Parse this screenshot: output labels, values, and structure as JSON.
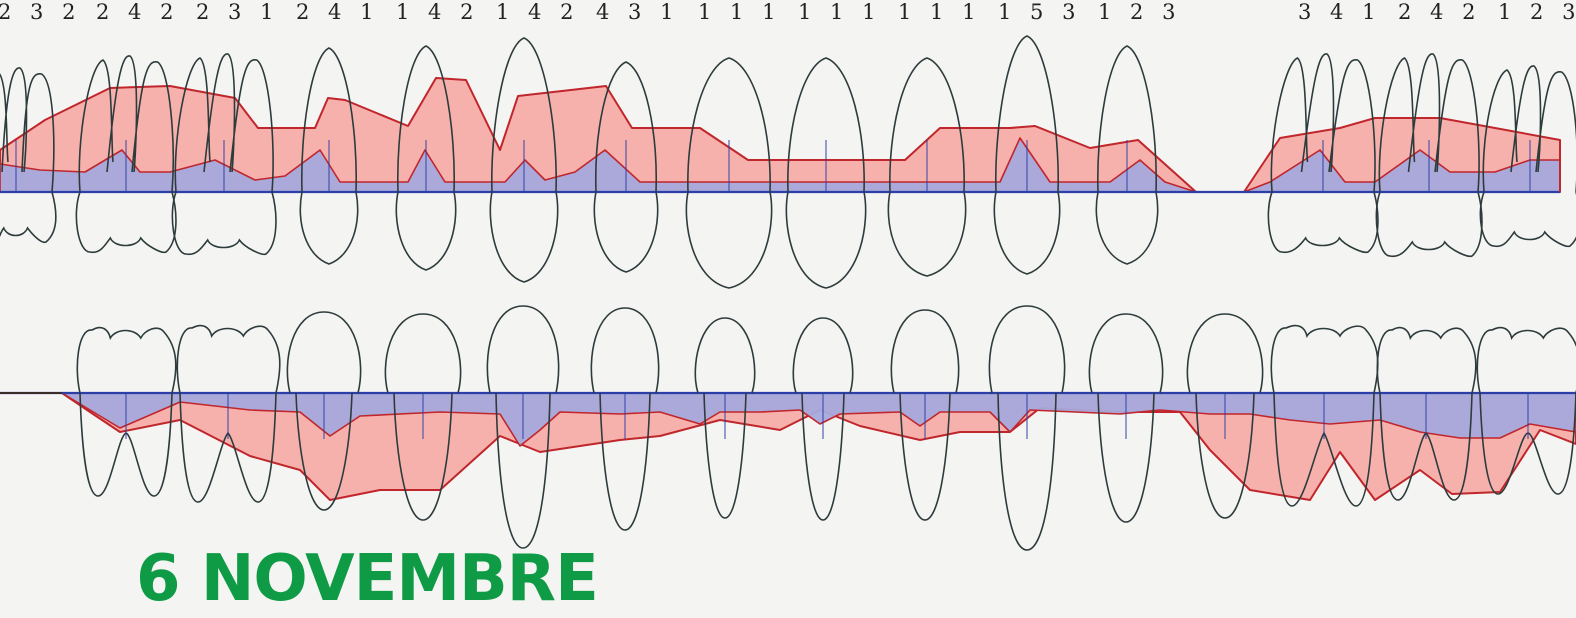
{
  "headline": "6 NOVEMBRE",
  "upper_probing_depths": [
    "2 3 2",
    "2 4 2",
    "2 3 1",
    "2 4 1",
    "1 4 2",
    "1 4 2",
    "4 3 1",
    "1 1 1",
    "1 1 1",
    "1 1 1",
    "1 5 3",
    "1 2 3",
    "",
    "3 4 1",
    "2 4 2",
    "1 2 3"
  ],
  "colors": {
    "recession_fill": "#f7b1ad",
    "recession_line": "#c0262b",
    "gingiva_fill": "#a7a9dc",
    "gingiva_line": "#2c3fa8",
    "tooth_outline": "#2d3b3c",
    "headline": "#0f9b45",
    "background": "#f4f4f2"
  }
}
